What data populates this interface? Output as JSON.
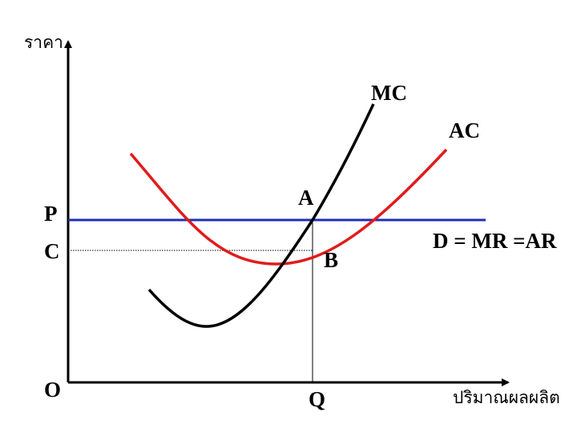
{
  "axes": {
    "y_label": "ราคา",
    "x_label": "ปริมาณผลผลิต",
    "origin": "O"
  },
  "curves": {
    "mc": "MC",
    "ac": "AC",
    "demand": "D = MR =AR"
  },
  "points": {
    "a": "A",
    "b": "B",
    "p": "P",
    "c": "C",
    "q": "Q"
  }
}
